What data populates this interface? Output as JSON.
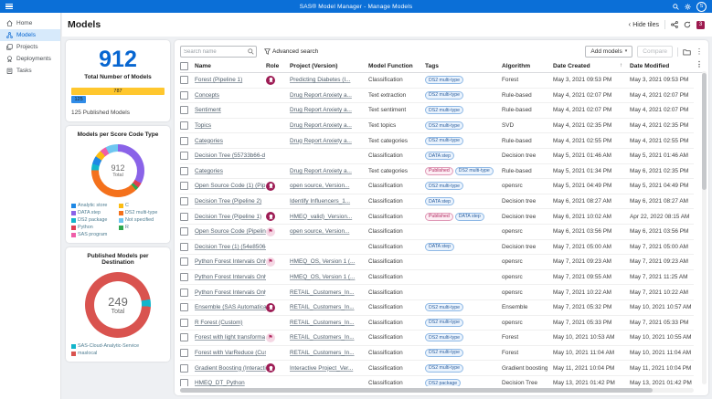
{
  "topbar": {
    "title": "SAS® Model Manager - Manage Models",
    "avatar_initial": "S"
  },
  "sidebar": {
    "items": [
      {
        "label": "Home"
      },
      {
        "label": "Models"
      },
      {
        "label": "Projects"
      },
      {
        "label": "Deployments"
      },
      {
        "label": "Tasks"
      }
    ],
    "active": "Models"
  },
  "page": {
    "title": "Models",
    "hide_tiles_label": "Hide tiles",
    "badge_count": "3"
  },
  "toolbar": {
    "search_placeholder": "Search name",
    "advanced_search_label": "Advanced search",
    "add_models_label": "Add models",
    "compare_label": "Compare"
  },
  "tiles": {
    "total_models": {
      "value": "912",
      "title": "Total Number of Models",
      "footer": "125 Published Models"
    },
    "score_code": {
      "title": "Models per Score Code Type",
      "center_value": "912",
      "center_label": "Total",
      "legend": [
        {
          "label": "Analytic store",
          "color": "#1e88e5"
        },
        {
          "label": "C",
          "color": "#fbbc12"
        },
        {
          "label": "DATA step",
          "color": "#8a63e8"
        },
        {
          "label": "DS2 multi-type",
          "color": "#f4711c"
        },
        {
          "label": "DS2 package",
          "color": "#12b5cb"
        },
        {
          "label": "Not specified",
          "color": "#6ec6f0"
        },
        {
          "label": "Python",
          "color": "#e03e52"
        },
        {
          "label": "R",
          "color": "#2fa84f"
        },
        {
          "label": "SAS program",
          "color": "#ef5da8"
        }
      ]
    },
    "destination": {
      "title": "Published Models per Destination",
      "center_value": "249",
      "center_label": "Total",
      "legend": [
        {
          "label": "SAS-Cloud-Analytic-Service",
          "color": "#12b5cb"
        },
        {
          "label": "maslocal",
          "color": "#d9534f"
        }
      ]
    }
  },
  "chart_data": [
    {
      "id": "published-bar",
      "type": "bar",
      "title": "Total Number of Models",
      "categories": [
        "Unpublished models",
        "Published models"
      ],
      "values": [
        787,
        125
      ],
      "colors": [
        "#ffc72e",
        "#2f8ce8"
      ],
      "annotation": "125 Published Models"
    },
    {
      "id": "score-code-donut",
      "type": "pie",
      "title": "Models per Score Code Type",
      "total": 912,
      "start_angle": 0,
      "segments": [
        {
          "label": "DATA step",
          "value": 300,
          "color": "#8a63e8"
        },
        {
          "label": "Python",
          "value": 28,
          "color": "#e03e52"
        },
        {
          "label": "R",
          "value": 18,
          "color": "#2fa84f"
        },
        {
          "label": "DS2 multi-type",
          "value": 340,
          "color": "#f4711c"
        },
        {
          "label": "DS2 package",
          "value": 36,
          "color": "#12b5cb"
        },
        {
          "label": "Analytic store",
          "value": 45,
          "color": "#1e88e5"
        },
        {
          "label": "C",
          "value": 40,
          "color": "#fbbc12"
        },
        {
          "label": "SAS program",
          "value": 35,
          "color": "#ef5da8"
        },
        {
          "label": "Not specified",
          "value": 70,
          "color": "#6ec6f0"
        }
      ]
    },
    {
      "id": "destination-donut",
      "type": "pie",
      "title": "Published Models per Destination",
      "total": 249,
      "start_angle": 80,
      "segments": [
        {
          "label": "SAS-Cloud-Analytic-Service",
          "value": 9,
          "color": "#12b5cb"
        },
        {
          "label": "maslocal",
          "value": 240,
          "color": "#d9534f"
        }
      ]
    }
  ],
  "table": {
    "columns": [
      "Name",
      "Role",
      "Project (Version)",
      "Model Function",
      "Tags",
      "Algorithm",
      "Date Created",
      "Date Modified"
    ],
    "sort": {
      "column": "Date Created",
      "direction": "ascending"
    },
    "rows": [
      {
        "name": "Forest (Pipeline 1)",
        "role": "champion",
        "project": "Predicting Diabetes (I...",
        "function": "Classification",
        "tags": [
          {
            "label": "DS2 multi-type",
            "style": "blue"
          }
        ],
        "algorithm": "Forest",
        "created": "May 3, 2021 09:53 PM",
        "modified": "May 3, 2021 09:53 PM"
      },
      {
        "name": "Concepts",
        "role": "",
        "project": "Drug Report Anxiety a...",
        "function": "Text extraction",
        "tags": [
          {
            "label": "DS2 multi-type",
            "style": "blue"
          }
        ],
        "algorithm": "Rule-based",
        "created": "May 4, 2021 02:07 PM",
        "modified": "May 4, 2021 02:07 PM"
      },
      {
        "name": "Sentiment",
        "role": "",
        "project": "Drug Report Anxiety a...",
        "function": "Text sentiment",
        "tags": [
          {
            "label": "DS2 multi-type",
            "style": "blue"
          }
        ],
        "algorithm": "Rule-based",
        "created": "May 4, 2021 02:07 PM",
        "modified": "May 4, 2021 02:07 PM"
      },
      {
        "name": "Topics",
        "role": "",
        "project": "Drug Report Anxiety a...",
        "function": "Text topics",
        "tags": [
          {
            "label": "DS2 multi-type",
            "style": "blue"
          }
        ],
        "algorithm": "SVD",
        "created": "May 4, 2021 02:35 PM",
        "modified": "May 4, 2021 02:35 PM"
      },
      {
        "name": "Categories",
        "role": "",
        "project": "Drug Report Anxiety a...",
        "function": "Text categories",
        "tags": [
          {
            "label": "DS2 multi-type",
            "style": "blue"
          }
        ],
        "algorithm": "Rule-based",
        "created": "May 4, 2021 02:55 PM",
        "modified": "May 4, 2021 02:55 PM"
      },
      {
        "name": "Decision Tree (55733b66-d",
        "role": "",
        "project": "",
        "function": "Classification",
        "tags": [
          {
            "label": "DATA step",
            "style": "blue"
          }
        ],
        "algorithm": "Decision tree",
        "created": "May 5, 2021 01:46 AM",
        "modified": "May 5, 2021 01:46 AM"
      },
      {
        "name": "Categories",
        "role": "",
        "project": "Drug Report Anxiety a...",
        "function": "Text categories",
        "tags": [
          {
            "label": "Published",
            "style": "pink"
          },
          {
            "label": "DS2 multi-type",
            "style": "blue"
          }
        ],
        "algorithm": "Rule-based",
        "created": "May 5, 2021 01:34 PM",
        "modified": "May 6, 2021 02:35 PM"
      },
      {
        "name": "Open Source Code (1) (Pip",
        "role": "champion",
        "project": "open source, Version...",
        "function": "Classification",
        "tags": [
          {
            "label": "DS2 multi-type",
            "style": "blue"
          }
        ],
        "algorithm": "opensrc",
        "created": "May 5, 2021 04:49 PM",
        "modified": "May 5, 2021 04:49 PM"
      },
      {
        "name": "Decision Tree (Pipeline 2)",
        "role": "",
        "project": "Identify Influencers_1...",
        "function": "Classification",
        "tags": [
          {
            "label": "DATA step",
            "style": "blue"
          }
        ],
        "algorithm": "Decision tree",
        "created": "May 6, 2021 08:27 AM",
        "modified": "May 6, 2021 08:27 AM"
      },
      {
        "name": "Decision Tree (Pipeline 1)",
        "role": "champion",
        "project": "HMEQ_valid)_Version...",
        "function": "Classification",
        "tags": [
          {
            "label": "Published",
            "style": "pink"
          },
          {
            "label": "DATA step",
            "style": "blue"
          }
        ],
        "algorithm": "Decision tree",
        "created": "May 6, 2021 10:02 AM",
        "modified": "Apr 22, 2022 08:15 AM"
      },
      {
        "name": "Open Source Code (Pipelin",
        "role": "challenger",
        "project": "open source, Version...",
        "function": "Classification",
        "tags": [],
        "algorithm": "opensrc",
        "created": "May 6, 2021 03:56 PM",
        "modified": "May 6, 2021 03:56 PM"
      },
      {
        "name": "Decision Tree (1) (54e85064",
        "role": "",
        "project": "",
        "function": "Classification",
        "tags": [
          {
            "label": "DATA step",
            "style": "blue"
          }
        ],
        "algorithm": "Decision tree",
        "created": "May 7, 2021 05:00 AM",
        "modified": "May 7, 2021 05:00 AM"
      },
      {
        "name": "Python Forest Intervals Only",
        "role": "challenger",
        "project": "HMEQ_OS, Version 1 (...",
        "function": "Classification",
        "tags": [],
        "algorithm": "opensrc",
        "created": "May 7, 2021 09:23 AM",
        "modified": "May 7, 2021 09:23 AM"
      },
      {
        "name": "Python Forest Intervals Only",
        "role": "",
        "project": "HMEQ_OS, Version 1 (...",
        "function": "Classification",
        "tags": [],
        "algorithm": "opensrc",
        "created": "May 7, 2021 09:55 AM",
        "modified": "May 7, 2021 11:25 AM"
      },
      {
        "name": "Python Forest Intervals Only",
        "role": "",
        "project": "RETAIL_Customers_In...",
        "function": "Classification",
        "tags": [],
        "algorithm": "opensrc",
        "created": "May 7, 2021 10:22 AM",
        "modified": "May 7, 2021 10:22 AM"
      },
      {
        "name": "Ensemble (SAS Automatica",
        "role": "champion",
        "project": "RETAIL_Customers_In...",
        "function": "Classification",
        "tags": [
          {
            "label": "DS2 multi-type",
            "style": "blue"
          }
        ],
        "algorithm": "Ensemble",
        "created": "May 7, 2021 05:32 PM",
        "modified": "May 10, 2021 10:57 AM"
      },
      {
        "name": "R Forest (Custom)",
        "role": "",
        "project": "RETAIL_Customers_In...",
        "function": "Classification",
        "tags": [
          {
            "label": "DS2 multi-type",
            "style": "blue"
          }
        ],
        "algorithm": "opensrc",
        "created": "May 7, 2021 05:33 PM",
        "modified": "May 7, 2021 05:33 PM"
      },
      {
        "name": "Forest with light transforma",
        "role": "challenger",
        "project": "RETAIL_Customers_In...",
        "function": "Classification",
        "tags": [
          {
            "label": "DS2 multi-type",
            "style": "blue"
          }
        ],
        "algorithm": "Forest",
        "created": "May 10, 2021 10:53 AM",
        "modified": "May 10, 2021 10:55 AM"
      },
      {
        "name": "Forest with VarReduce (Cus",
        "role": "",
        "project": "RETAIL_Customers_In...",
        "function": "Classification",
        "tags": [
          {
            "label": "DS2 multi-type",
            "style": "blue"
          }
        ],
        "algorithm": "Forest",
        "created": "May 10, 2021 11:04 AM",
        "modified": "May 10, 2021 11:04 AM"
      },
      {
        "name": "Gradient Boosting (Interacti",
        "role": "champion",
        "project": "Interactive Project_Ver...",
        "function": "Classification",
        "tags": [
          {
            "label": "DS2 multi-type",
            "style": "blue"
          }
        ],
        "algorithm": "Gradient boosting",
        "created": "May 11, 2021 10:04 PM",
        "modified": "May 11, 2021 10:04 PM"
      },
      {
        "name": "HMEQ_DT_Python",
        "role": "",
        "project": "",
        "function": "Classification",
        "tags": [
          {
            "label": "DS2 package",
            "style": "blue"
          }
        ],
        "algorithm": "Decision Tree",
        "created": "May 13, 2021 01:42 PM",
        "modified": "May 13, 2021 01:42 PM"
      }
    ]
  }
}
